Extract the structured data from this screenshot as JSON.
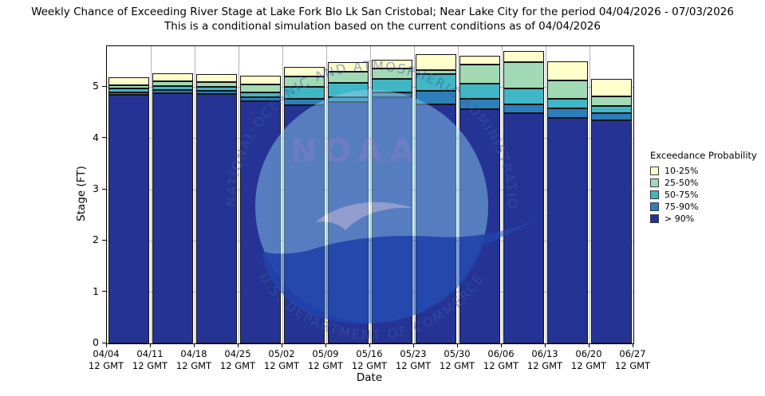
{
  "title": {
    "line1": "Weekly Chance of Exceeding River Stage at Lake Fork Blo Lk San Cristobal; Near Lake City for the period 04/04/2026 - 07/03/2026",
    "line2": "This is a conditional simulation based on the current conditions as of 04/04/2026"
  },
  "axes": {
    "x_label": "Date",
    "y_label": "Stage (FT)",
    "y_ticks": [
      0,
      1,
      2,
      3,
      4,
      5
    ],
    "x_ticks": [
      {
        "date": "04/04",
        "time": "12 GMT"
      },
      {
        "date": "04/11",
        "time": "12 GMT"
      },
      {
        "date": "04/18",
        "time": "12 GMT"
      },
      {
        "date": "04/25",
        "time": "12 GMT"
      },
      {
        "date": "05/02",
        "time": "12 GMT"
      },
      {
        "date": "05/09",
        "time": "12 GMT"
      },
      {
        "date": "05/16",
        "time": "12 GMT"
      },
      {
        "date": "05/23",
        "time": "12 GMT"
      },
      {
        "date": "05/30",
        "time": "12 GMT"
      },
      {
        "date": "06/06",
        "time": "12 GMT"
      },
      {
        "date": "06/13",
        "time": "12 GMT"
      },
      {
        "date": "06/20",
        "time": "12 GMT"
      },
      {
        "date": "06/27",
        "time": "12 GMT"
      }
    ]
  },
  "legend": {
    "title": "Exceedance Probability",
    "items": [
      {
        "label": "10-25%",
        "color": "#ffffcc"
      },
      {
        "label": "25-50%",
        "color": "#a1dab4"
      },
      {
        "label": "50-75%",
        "color": "#41b6c4"
      },
      {
        "label": "75-90%",
        "color": "#2c7fb8"
      },
      {
        "label": "> 90%",
        "color": "#253494"
      }
    ]
  },
  "watermark": {
    "ring_text": "NATIONAL OCEANIC AND ATMOSPHERIC ADMINISTRATION",
    "bottom_text": "U.S. DEPARTMENT OF COMMERCE",
    "wordmark": "NOAA"
  },
  "colors": {
    "grid": "#b3b3b3",
    "axis": "#000000",
    "background": "#ffffff"
  },
  "chart_data": {
    "type": "bar",
    "stacked": true,
    "title": "Weekly Chance of Exceeding River Stage at Lake Fork Blo Lk San Cristobal; Near Lake City for the period 04/04/2026 - 07/03/2026",
    "subtitle": "This is a conditional simulation based on the current conditions as of 04/04/2026",
    "xlabel": "Date",
    "ylabel": "Stage (FT)",
    "ylim": [
      0,
      5.8
    ],
    "grid": true,
    "legend_position": "right",
    "categories": [
      "04/04",
      "04/11",
      "04/18",
      "04/25",
      "05/02",
      "05/09",
      "05/16",
      "05/23",
      "05/30",
      "06/06",
      "06/13",
      "06/20"
    ],
    "value_note": "cumulative_top_ft = river stage (FT) at the top of each stacked probability band, read from the y-axis; bands stack bottom-to-top in series order",
    "series": [
      {
        "name": "> 90%",
        "color": "#253494",
        "cumulative_top_ft": [
          4.85,
          4.88,
          4.86,
          4.73,
          4.65,
          4.71,
          4.8,
          4.67,
          4.57,
          4.5,
          4.4,
          4.35
        ]
      },
      {
        "name": "75-90%",
        "color": "#2c7fb8",
        "cumulative_top_ft": [
          4.9,
          4.94,
          4.93,
          4.81,
          4.77,
          4.81,
          4.9,
          4.93,
          4.77,
          4.67,
          4.58,
          4.5
        ]
      },
      {
        "name": "50-75%",
        "color": "#41b6c4",
        "cumulative_top_ft": [
          4.97,
          5.02,
          5.01,
          4.9,
          5.01,
          5.08,
          5.17,
          5.25,
          5.07,
          4.98,
          4.77,
          4.64
        ]
      },
      {
        "name": "25-50%",
        "color": "#a1dab4",
        "cumulative_top_ft": [
          5.04,
          5.11,
          5.1,
          5.06,
          5.21,
          5.31,
          5.36,
          5.33,
          5.44,
          5.49,
          5.13,
          4.82
        ]
      },
      {
        "name": "10-25%",
        "color": "#ffffcc",
        "cumulative_top_ft": [
          5.2,
          5.27,
          5.25,
          5.23,
          5.39,
          5.49,
          5.53,
          5.64,
          5.62,
          5.71,
          5.5,
          5.16
        ]
      }
    ]
  }
}
